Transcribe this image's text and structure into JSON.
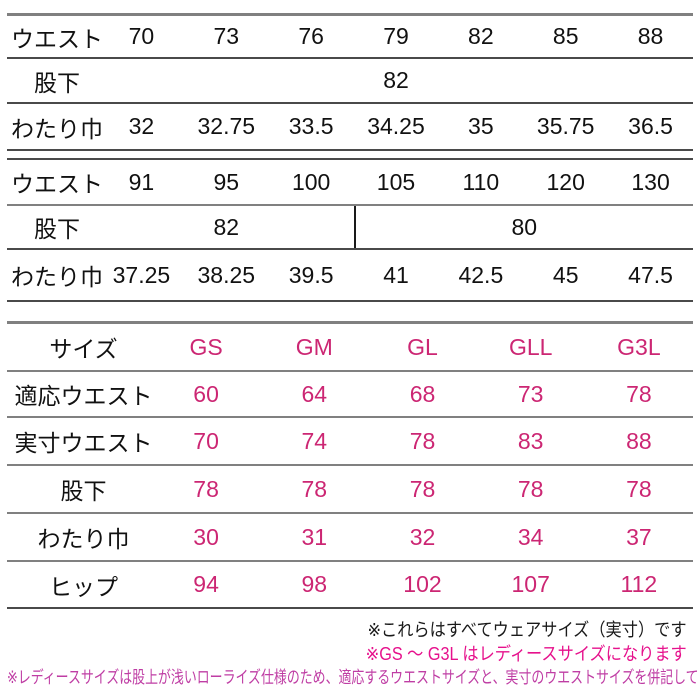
{
  "colors": {
    "table_value_pink": "#cc2673",
    "footnote_pink": "#e6118c",
    "footnote_purple_pink": "#bf3da4",
    "text_black": "#1a1a1a",
    "rule_gray": "#808080",
    "rule_dark": "#4a4a4a"
  },
  "size_chart_upper": {
    "rows": [
      {
        "label": "ウエスト",
        "values": [
          "70",
          "73",
          "76",
          "79",
          "82",
          "85",
          "88"
        ]
      },
      {
        "label": "股下",
        "value": "82"
      },
      {
        "label": "わたり巾",
        "values": [
          "32",
          "32.75",
          "33.5",
          "34.25",
          "35",
          "35.75",
          "36.5"
        ]
      }
    ]
  },
  "size_chart_middle": {
    "rows": [
      {
        "label": "ウエスト",
        "values": [
          "91",
          "95",
          "100",
          "105",
          "110",
          "120",
          "130"
        ]
      },
      {
        "label": "股下",
        "left_value": "82",
        "right_value": "80"
      },
      {
        "label": "わたり巾",
        "values": [
          "37.25",
          "38.25",
          "39.5",
          "41",
          "42.5",
          "45",
          "47.5"
        ]
      }
    ]
  },
  "size_chart_ladies": {
    "rows": [
      {
        "label": "サイズ",
        "values": [
          "GS",
          "GM",
          "GL",
          "GLL",
          "G3L"
        ]
      },
      {
        "label": "適応ウエスト",
        "values": [
          "60",
          "64",
          "68",
          "73",
          "78"
        ]
      },
      {
        "label": "実寸ウエスト",
        "values": [
          "70",
          "74",
          "78",
          "83",
          "88"
        ]
      },
      {
        "label": "股下",
        "values": [
          "78",
          "78",
          "78",
          "78",
          "78"
        ]
      },
      {
        "label": "わたり巾",
        "values": [
          "30",
          "31",
          "32",
          "34",
          "37"
        ]
      },
      {
        "label": "ヒップ",
        "values": [
          "94",
          "98",
          "102",
          "107",
          "112"
        ]
      }
    ]
  },
  "footnotes": {
    "note1": "※これらはすべてウェアサイズ（実寸）です",
    "note2": "※GS ～ G3L はレディースサイズになります",
    "note3": "※レディースサイズは股上が浅いローライズ仕様のため、適応するウエストサイズと、実寸のウエストサイズを併記しています"
  }
}
